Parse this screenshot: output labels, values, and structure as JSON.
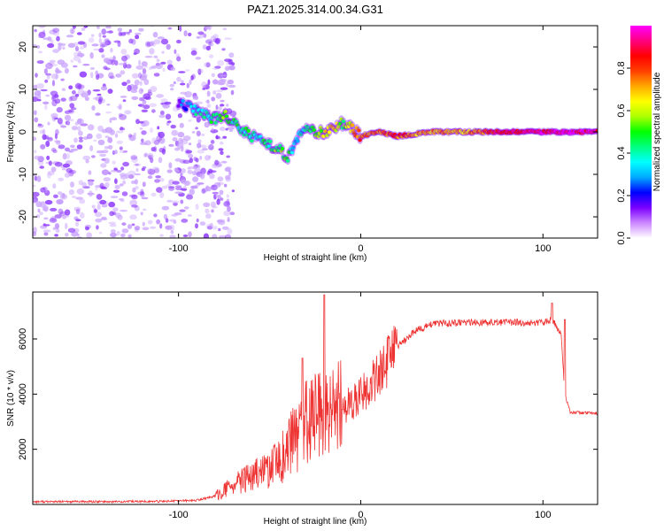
{
  "title": "PAZ1.2025.314.00.34.G31",
  "chart_data": [
    {
      "type": "heatmap",
      "xlabel": "Height of straight line (km)",
      "ylabel": "Frequency (Hz)",
      "xlim": [
        -180,
        130
      ],
      "ylim": [
        -25,
        25
      ],
      "xticks": [
        -100,
        0,
        100
      ],
      "yticks": [
        20,
        10,
        0,
        -10,
        -20
      ],
      "colorbar": {
        "label": "Normalized spectral amplitude",
        "range": [
          0,
          1
        ],
        "ticks": [
          "0.0",
          "0.2",
          "0.4",
          "0.6",
          "0.8"
        ],
        "colors": [
          "#ffffff",
          "#cc88ff",
          "#7a00ff",
          "#0000ff",
          "#00aaff",
          "#00ffff",
          "#00ff80",
          "#00ff00",
          "#aaff00",
          "#ffff00",
          "#ffaa00",
          "#ff4000",
          "#ff0000",
          "#ff0080",
          "#ff00ff"
        ]
      },
      "ridge": {
        "x": [
          -100,
          -90,
          -80,
          -75,
          -70,
          -60,
          -50,
          -45,
          -40,
          -35,
          -30,
          -25,
          -20,
          -15,
          -10,
          -5,
          0,
          10,
          20,
          40,
          60,
          80,
          100,
          115,
          130
        ],
        "freq": [
          7,
          5,
          3,
          4,
          2,
          -1,
          -3,
          -4,
          -6,
          -2,
          1,
          0,
          0,
          1,
          2,
          1,
          -1,
          0,
          -1,
          0,
          0,
          0,
          0,
          0,
          0
        ],
        "amplitude": [
          0.2,
          0.35,
          0.45,
          0.5,
          0.45,
          0.4,
          0.45,
          0.5,
          0.5,
          0.3,
          0.4,
          0.5,
          0.6,
          0.7,
          0.5,
          0.7,
          0.8,
          0.75,
          0.8,
          0.7,
          0.7,
          0.9,
          0.9,
          0.95,
          0.9
        ]
      }
    },
    {
      "type": "line",
      "xlabel": "Height of straight line (km)",
      "ylabel": "SNR (10 * v/v)",
      "xlim": [
        -180,
        130
      ],
      "ylim": [
        0,
        7700
      ],
      "xticks": [
        -100,
        0,
        100
      ],
      "yticks": [
        2000,
        4000,
        6000
      ],
      "series": [
        {
          "name": "SNR",
          "color": "#ee3333",
          "x": [
            -180,
            -140,
            -110,
            -90,
            -80,
            -70,
            -60,
            -50,
            -45,
            -40,
            -35,
            -30,
            -25,
            -20,
            -15,
            -10,
            -5,
            0,
            5,
            10,
            20,
            30,
            40,
            60,
            80,
            100,
            105,
            110,
            112,
            115,
            130
          ],
          "y": [
            100,
            100,
            110,
            150,
            300,
            700,
            1000,
            1300,
            1500,
            2000,
            2500,
            3000,
            3200,
            3000,
            3300,
            3500,
            3700,
            4000,
            4300,
            4700,
            5700,
            6300,
            6550,
            6600,
            6600,
            6600,
            6700,
            6200,
            4000,
            3350,
            3300
          ]
        }
      ],
      "spikes": [
        {
          "x": -20,
          "y": 7600
        },
        {
          "x": -32,
          "y": 5300
        },
        {
          "x": 105,
          "y": 7300
        },
        {
          "x": 112,
          "y": 6700
        }
      ]
    }
  ]
}
